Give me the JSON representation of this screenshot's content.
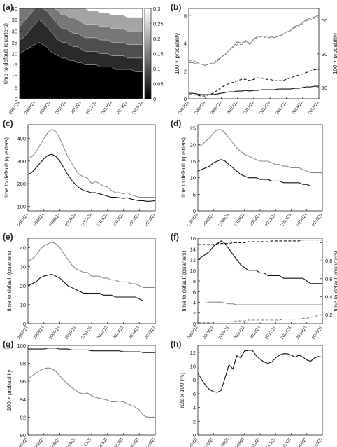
{
  "panel_letters": [
    "(a)",
    "(b)",
    "(c)",
    "(d)",
    "(e)",
    "(f)",
    "(g)",
    "(h)"
  ],
  "quarter_labels": [
    "2007Q1",
    "2008Q1",
    "2009Q1",
    "2010Q1",
    "2011Q1",
    "2012Q1",
    "2013Q1",
    "2014Q1",
    "2015Q1"
  ],
  "chart_data": [
    {
      "panel": "(a)",
      "type": "area",
      "ylabel": "time to default (quarters)",
      "x": "quarterly 2007Q1-2015Q1",
      "ylim": [
        0,
        40
      ],
      "yticks": [
        0,
        5,
        10,
        15,
        20,
        25,
        30,
        35,
        40
      ],
      "colorbar": {
        "ticks": [
          "0",
          "0.05",
          "0.1",
          "0.15",
          "0.2",
          "0.25",
          "0.3"
        ],
        "range": [
          0,
          0.3
        ]
      },
      "contours": [
        {
          "level": "darkest",
          "values": [
            20,
            21,
            22,
            23,
            24,
            25,
            24,
            23,
            21,
            20,
            19,
            18,
            18,
            17,
            17,
            16,
            16,
            15,
            15,
            15,
            15,
            14,
            14,
            14,
            14,
            13,
            13,
            13,
            13,
            13,
            12,
            12,
            12
          ]
        },
        {
          "level": "2",
          "values": [
            26,
            27,
            29,
            31,
            33,
            35,
            34,
            32,
            30,
            28,
            26,
            25,
            25,
            24,
            23,
            23,
            22,
            21,
            21,
            21,
            21,
            20,
            20,
            20,
            19,
            19,
            19,
            19,
            18,
            18,
            18,
            18,
            18
          ]
        },
        {
          "level": "3",
          "values": [
            32,
            34,
            36,
            38,
            40,
            40,
            40,
            39,
            37,
            35,
            33,
            31,
            31,
            30,
            29,
            29,
            28,
            27,
            27,
            27,
            27,
            26,
            26,
            26,
            25,
            25,
            25,
            25,
            24,
            24,
            24,
            24,
            24
          ]
        },
        {
          "level": "4",
          "values": [
            40,
            40,
            40,
            40,
            40,
            40,
            40,
            40,
            40,
            40,
            39,
            37,
            37,
            36,
            36,
            35,
            34,
            33,
            33,
            33,
            33,
            32,
            32,
            32,
            31,
            31,
            31,
            31,
            30,
            30,
            30,
            30,
            30
          ]
        },
        {
          "level": "5",
          "values": [
            40,
            40,
            40,
            40,
            40,
            40,
            40,
            40,
            40,
            40,
            40,
            40,
            40,
            40,
            40,
            40,
            40,
            40,
            39,
            39,
            39,
            38,
            38,
            38,
            37,
            37,
            37,
            37,
            36,
            36,
            36,
            36,
            36
          ]
        }
      ]
    },
    {
      "panel": "(b)",
      "type": "line",
      "ylabel_left": "100 × probability",
      "ylabel_right": "100 × probability",
      "ylim_left": [
        0,
        6.5
      ],
      "yticks_left": [
        0,
        2,
        4,
        6
      ],
      "yticks_right": [
        10,
        30,
        50
      ],
      "series": [
        {
          "style": "grey-solid",
          "values": [
            2.6,
            2.6,
            2.5,
            2.5,
            2.4,
            2.5,
            2.5,
            2.7,
            3.0,
            3.2,
            3.5,
            3.8,
            4.1,
            4.0,
            4.2,
            3.9,
            4.3,
            4.5,
            4.5,
            4.5,
            4.5,
            4.4,
            4.5,
            4.6,
            4.8,
            4.9,
            5.2,
            5.3,
            5.5,
            5.7,
            5.8,
            5.9,
            6.0
          ]
        },
        {
          "style": "grey-dashed",
          "values": [
            2.7,
            2.8,
            2.6,
            2.5,
            2.4,
            2.5,
            2.6,
            2.8,
            3.0,
            3.2,
            3.5,
            3.7,
            3.9,
            3.9,
            4.1,
            4.0,
            4.3,
            4.4,
            4.5,
            4.4,
            4.4,
            4.4,
            4.5,
            4.6,
            4.8,
            4.9,
            5.1,
            5.2,
            5.4,
            5.6,
            5.7,
            5.8,
            5.9
          ]
        },
        {
          "style": "black-dashed",
          "values": [
            0.3,
            0.3,
            0.25,
            0.2,
            0.2,
            0.3,
            0.4,
            0.6,
            0.8,
            1.0,
            1.1,
            1.2,
            1.3,
            1.4,
            1.4,
            1.3,
            1.4,
            1.5,
            1.5,
            1.4,
            1.4,
            1.3,
            1.3,
            1.3,
            1.4,
            1.5,
            1.6,
            1.7,
            1.8,
            1.9,
            2.0,
            2.1,
            2.1
          ]
        },
        {
          "style": "black-solid",
          "values": [
            0.4,
            0.4,
            0.35,
            0.3,
            0.3,
            0.3,
            0.3,
            0.35,
            0.4,
            0.45,
            0.5,
            0.5,
            0.55,
            0.55,
            0.6,
            0.55,
            0.6,
            0.6,
            0.65,
            0.65,
            0.65,
            0.65,
            0.7,
            0.7,
            0.7,
            0.7,
            0.75,
            0.75,
            0.8,
            0.85,
            0.85,
            0.9,
            0.9
          ]
        }
      ]
    },
    {
      "panel": "(c)",
      "type": "line",
      "ylabel": "time to default (quarters)",
      "ylim": [
        80,
        460
      ],
      "yticks": [
        100,
        200,
        300,
        400
      ],
      "series": [
        {
          "style": "grey",
          "values": [
            310,
            320,
            340,
            370,
            400,
            425,
            440,
            430,
            400,
            360,
            320,
            290,
            260,
            240,
            230,
            225,
            200,
            210,
            200,
            190,
            185,
            170,
            160,
            160,
            155,
            160,
            150,
            145,
            140,
            140,
            140,
            140,
            140
          ]
        },
        {
          "style": "black",
          "values": [
            240,
            250,
            270,
            290,
            310,
            325,
            330,
            320,
            300,
            270,
            240,
            215,
            195,
            180,
            170,
            165,
            160,
            160,
            155,
            150,
            145,
            140,
            140,
            138,
            135,
            138,
            132,
            128,
            125,
            125,
            122,
            123,
            125
          ]
        }
      ]
    },
    {
      "panel": "(d)",
      "type": "line",
      "ylabel": "time to default (quarters)",
      "ylim": [
        0,
        26
      ],
      "yticks": [
        0,
        5,
        10,
        15,
        20,
        25
      ],
      "series": [
        {
          "style": "grey",
          "values": [
            19.5,
            20,
            21,
            22,
            23.5,
            24.5,
            24.5,
            23.5,
            22,
            20.5,
            19,
            18,
            17,
            16.5,
            16,
            15.5,
            15,
            15,
            15,
            14.5,
            14,
            14,
            13.5,
            13.5,
            13,
            13,
            13,
            12.5,
            12,
            11.5,
            11.5,
            11.5,
            11.5
          ]
        },
        {
          "style": "black",
          "values": [
            12,
            12.5,
            13,
            13.5,
            14.5,
            15,
            15.5,
            15,
            14,
            13,
            12,
            11,
            10.5,
            10,
            10,
            10,
            9.5,
            9.5,
            9.5,
            9,
            9,
            9,
            8.5,
            8.5,
            8.5,
            8.5,
            8.5,
            8,
            8,
            7.5,
            7.5,
            7.5,
            7.5
          ]
        }
      ]
    },
    {
      "panel": "(e)",
      "type": "line",
      "ylabel": "time to default (quarters)",
      "ylim": [
        0,
        45
      ],
      "yticks": [
        0,
        10,
        20,
        30,
        40
      ],
      "series": [
        {
          "style": "grey",
          "values": [
            33,
            34,
            36,
            39,
            41,
            42,
            43,
            42,
            40,
            37,
            34,
            31,
            29,
            28,
            27,
            27,
            25,
            25,
            25,
            24,
            24,
            23,
            23,
            22,
            22,
            22,
            21,
            21,
            20,
            19,
            19,
            19,
            19
          ]
        },
        {
          "style": "black",
          "values": [
            20,
            21,
            22,
            24,
            25,
            25.5,
            26,
            25,
            24,
            22,
            20,
            19,
            18,
            17,
            16,
            16,
            16,
            16,
            16,
            15,
            15,
            15,
            14,
            14,
            14,
            14,
            14,
            14,
            13,
            12,
            12,
            12,
            12
          ]
        }
      ]
    },
    {
      "panel": "(f)",
      "type": "line",
      "ylabel_left": "time to default (quarters)",
      "ylabel_right": "time to default (quarters)",
      "ylim_left": [
        0,
        16
      ],
      "yticks_left": [
        0,
        2,
        4,
        6,
        8,
        10,
        12,
        14,
        16
      ],
      "ylim_right": [
        0.1,
        1.05
      ],
      "yticks_right": [
        0.2,
        0.4,
        0.6,
        0.8,
        1
      ],
      "series": [
        {
          "style": "black-solid",
          "axis": "left",
          "values": [
            12,
            12.5,
            13,
            13.5,
            14.5,
            15,
            15.5,
            15,
            14,
            13,
            12,
            11,
            10.5,
            10,
            10,
            10,
            9.5,
            9.5,
            9,
            9,
            9,
            9,
            8.5,
            8.5,
            8.5,
            8.5,
            8.5,
            8.5,
            8,
            7.5,
            7.5,
            7.5,
            7.5
          ]
        },
        {
          "style": "black-dashed",
          "axis": "right",
          "values": [
            0.98,
            0.98,
            0.98,
            0.98,
            0.98,
            0.99,
            0.99,
            0.99,
            0.99,
            1.0,
            1.0,
            1.0,
            1.0,
            1.01,
            1.01,
            1.01,
            1.01,
            1.01,
            1.01,
            1.02,
            1.02,
            1.02,
            1.02,
            1.02,
            1.02,
            1.02,
            1.02,
            1.03,
            1.03,
            1.03,
            1.03,
            1.03,
            1.03
          ]
        },
        {
          "style": "grey-solid",
          "axis": "right",
          "values": [
            0.33,
            0.33,
            0.33,
            0.34,
            0.34,
            0.34,
            0.34,
            0.33,
            0.32,
            0.32,
            0.31,
            0.31,
            0.31,
            0.31,
            0.31,
            0.31,
            0.31,
            0.31,
            0.31,
            0.31,
            0.31,
            0.31,
            0.31,
            0.31,
            0.31,
            0.31,
            0.31,
            0.31,
            0.31,
            0.31,
            0.31,
            0.31,
            0.31
          ]
        },
        {
          "style": "grey-dashed",
          "axis": "right",
          "values": [
            0.11,
            0.11,
            0.11,
            0.11,
            0.12,
            0.12,
            0.12,
            0.12,
            0.12,
            0.12,
            0.13,
            0.13,
            0.13,
            0.14,
            0.14,
            0.14,
            0.14,
            0.14,
            0.14,
            0.14,
            0.14,
            0.14,
            0.15,
            0.15,
            0.15,
            0.15,
            0.15,
            0.16,
            0.16,
            0.17,
            0.18,
            0.19,
            0.2
          ]
        }
      ]
    },
    {
      "panel": "(g)",
      "type": "line",
      "ylabel": "100 × probability",
      "ylim": [
        90,
        100
      ],
      "yticks": [
        90,
        92,
        94,
        96,
        98,
        100
      ],
      "series": [
        {
          "style": "black",
          "values": [
            99.6,
            99.6,
            99.6,
            99.6,
            99.6,
            99.7,
            99.7,
            99.7,
            99.6,
            99.6,
            99.6,
            99.5,
            99.5,
            99.5,
            99.5,
            99.5,
            99.4,
            99.4,
            99.4,
            99.4,
            99.4,
            99.4,
            99.4,
            99.4,
            99.3,
            99.3,
            99.3,
            99.3,
            99.3,
            99.2,
            99.2,
            99.2,
            99.2
          ]
        },
        {
          "style": "grey",
          "values": [
            96.3,
            96.6,
            96.9,
            97.2,
            97.4,
            97.5,
            97.4,
            97.1,
            96.6,
            96.1,
            95.7,
            95.3,
            95.0,
            94.7,
            94.6,
            94.7,
            94.4,
            94.2,
            94.1,
            94.0,
            93.9,
            93.7,
            93.7,
            93.8,
            93.7,
            93.5,
            93.3,
            93.1,
            92.8,
            92.2,
            92.0,
            92.0,
            92.0
          ]
        }
      ]
    },
    {
      "panel": "(h)",
      "type": "line",
      "ylabel": "rate x 100 (%)",
      "ylim": [
        0,
        13
      ],
      "yticks": [
        0,
        2,
        4,
        6,
        8,
        10,
        12
      ],
      "series": [
        {
          "style": "black",
          "values": [
            9.0,
            8.0,
            7.2,
            6.6,
            6.3,
            6.2,
            6.5,
            8.3,
            10.2,
            9.6,
            11.5,
            11.2,
            12.2,
            12.3,
            12.3,
            11.5,
            11.0,
            10.6,
            10.4,
            10.6,
            11.2,
            11.6,
            11.8,
            11.8,
            11.6,
            11.3,
            11.6,
            11.3,
            10.9,
            10.7,
            11.2,
            11.4,
            11.3
          ]
        }
      ]
    }
  ]
}
